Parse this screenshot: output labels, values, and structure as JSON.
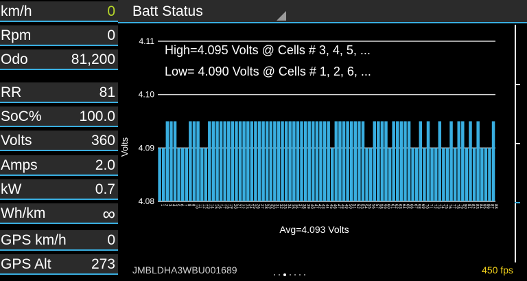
{
  "left_panel": {
    "rows": [
      {
        "label": "km/h",
        "value": "0",
        "color": "#b6d62a"
      },
      {
        "label": "Rpm",
        "value": "0"
      },
      {
        "label": "Odo",
        "value": "81,200"
      },
      {
        "label": "RR",
        "value": "81"
      },
      {
        "label": "SoC%",
        "value": "100.0"
      },
      {
        "label": "Volts",
        "value": "360"
      },
      {
        "label": "Amps",
        "value": "2.0"
      },
      {
        "label": "kW",
        "value": "0.7"
      },
      {
        "label": "Wh/km",
        "value": "∞"
      },
      {
        "label": "GPS km/h",
        "value": "0"
      },
      {
        "label": "GPS Alt",
        "value": "273"
      }
    ]
  },
  "header": {
    "title": "Batt Status"
  },
  "footer": {
    "vin": "JMBLDHA3WBU001689",
    "fps": "450 fps",
    "page_dots": 7,
    "active_dot": 3
  },
  "colors": {
    "accent": "#39aee0",
    "bar": "#39aee0",
    "fps": "#f2d21b",
    "speed": "#b6d62a"
  },
  "chart_data": {
    "type": "bar",
    "ylabel": "Volts",
    "xlabel": "Avg=4.093 Volts",
    "ylim": [
      4.08,
      4.11
    ],
    "yticks": [
      "4.08",
      "4.09",
      "4.10",
      "4.11"
    ],
    "annotations": [
      "High=4.095 Volts @ Cells # 3, 4, 5,  ...",
      "Low= 4.090 Volts @ Cells # 1, 2, 6,  ..."
    ],
    "cell_count": 88,
    "high_value": 4.095,
    "low_value": 4.09,
    "high_cells": [
      3,
      4,
      5,
      9,
      10,
      11,
      14,
      15,
      16,
      17,
      18,
      19,
      20,
      21,
      22,
      23,
      24,
      25,
      26,
      27,
      28,
      29,
      30,
      31,
      32,
      33,
      34,
      35,
      36,
      37,
      38,
      39,
      40,
      41,
      42,
      43,
      44,
      45,
      47,
      48,
      49,
      50,
      51,
      52,
      53,
      54,
      57,
      58,
      59,
      60,
      62,
      63,
      64,
      65,
      66,
      69,
      71,
      74,
      77,
      79,
      80,
      82,
      84,
      88
    ]
  }
}
